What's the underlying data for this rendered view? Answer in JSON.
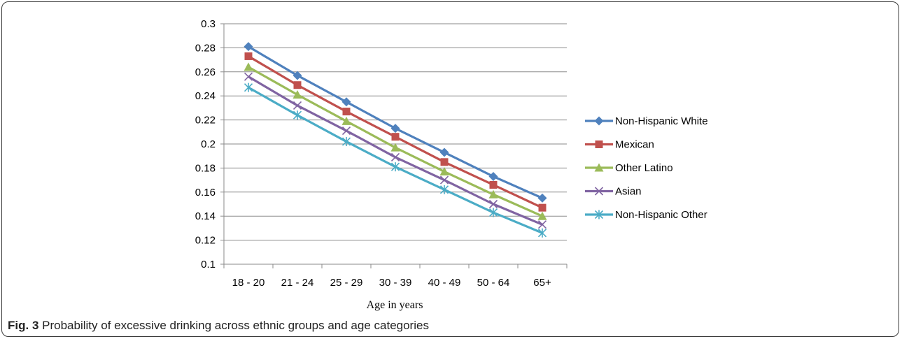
{
  "chart_data": {
    "type": "line",
    "title": "",
    "xlabel": "Age in years",
    "ylabel": "",
    "categories": [
      "18 - 20",
      "21 - 24",
      "25 - 29",
      "30 - 39",
      "40 - 49",
      "50 - 64",
      "65+"
    ],
    "ylim": [
      0.1,
      0.3
    ],
    "yticks": [
      "0.1",
      "0.12",
      "0.14",
      "0.16",
      "0.18",
      "0.2",
      "0.22",
      "0.24",
      "0.26",
      "0.28",
      "0.3"
    ],
    "grid": true,
    "legend_position": "right",
    "series": [
      {
        "name": "Non-Hispanic White",
        "color": "#4F81BD",
        "marker": "diamond",
        "values": [
          0.281,
          0.257,
          0.235,
          0.213,
          0.193,
          0.173,
          0.155
        ]
      },
      {
        "name": "Mexican",
        "color": "#C0504D",
        "marker": "square",
        "values": [
          0.273,
          0.249,
          0.227,
          0.206,
          0.185,
          0.166,
          0.147
        ]
      },
      {
        "name": "Other Latino",
        "color": "#9BBB59",
        "marker": "triangle",
        "values": [
          0.264,
          0.241,
          0.219,
          0.197,
          0.177,
          0.158,
          0.14
        ]
      },
      {
        "name": "Asian",
        "color": "#8064A2",
        "marker": "x",
        "values": [
          0.256,
          0.232,
          0.211,
          0.189,
          0.17,
          0.15,
          0.133
        ]
      },
      {
        "name": "Non-Hispanic Other",
        "color": "#4BACC6",
        "marker": "star",
        "values": [
          0.247,
          0.224,
          0.202,
          0.181,
          0.162,
          0.143,
          0.126
        ]
      }
    ]
  },
  "caption": {
    "label": "Fig. 3",
    "text": "Probability of excessive drinking across ethnic groups and age categories"
  }
}
